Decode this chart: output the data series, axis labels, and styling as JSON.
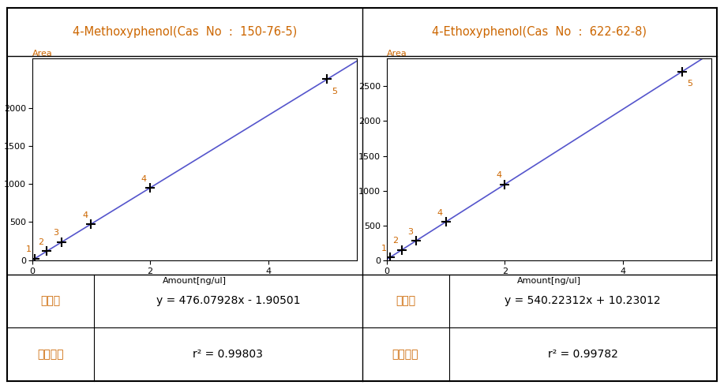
{
  "compound1": {
    "title": "4-Methoxyphenol(Cas  No  :  150-76-5)",
    "slope": 476.07928,
    "intercept": -1.90501,
    "r2": "0.99803",
    "regression_eq": "y = 476.07928x - 1.90501",
    "x_points": [
      0.05,
      0.25,
      0.5,
      1.0,
      2.0,
      5.0
    ],
    "point_labels": [
      "1",
      "2",
      "3",
      "4",
      "4",
      "5"
    ],
    "xlabel": "Amount[ng/ul]",
    "ylabel": "Area",
    "xlim": [
      0,
      5.5
    ],
    "ylim": [
      0,
      2650
    ],
    "xticks": [
      0,
      2,
      4
    ],
    "yticks": [
      0,
      500,
      1000,
      1500,
      2000
    ]
  },
  "compound2": {
    "title": "4-Ethoxyphenol(Cas  No  :  622-62-8)",
    "slope": 540.22312,
    "intercept": 10.23012,
    "r2": "0.99782",
    "regression_eq": "y = 540.22312x + 10.23012",
    "x_points": [
      0.05,
      0.25,
      0.5,
      1.0,
      2.0,
      5.0
    ],
    "point_labels": [
      "1",
      "2",
      "3",
      "4",
      "4",
      "5"
    ],
    "xlabel": "Amount[ng/ul]",
    "ylabel": "Area",
    "xlim": [
      0,
      5.5
    ],
    "ylim": [
      0,
      2900
    ],
    "xticks": [
      0,
      2,
      4
    ],
    "yticks": [
      0,
      500,
      1000,
      1500,
      2000,
      2500
    ]
  },
  "line_color": "#5555cc",
  "marker_color": "#000000",
  "title_color": "#cc6600",
  "label_color": "#cc6600",
  "area_label_color": "#cc6600",
  "bg_color": "#ffffff",
  "border_color": "#000000",
  "font_size_title": 10.5,
  "font_size_axis": 8,
  "font_size_tick": 8,
  "font_size_point_label": 8,
  "font_size_table": 10,
  "font_size_table_label": 10,
  "table_label1": "회규식",
  "table_label2": "상관계수"
}
